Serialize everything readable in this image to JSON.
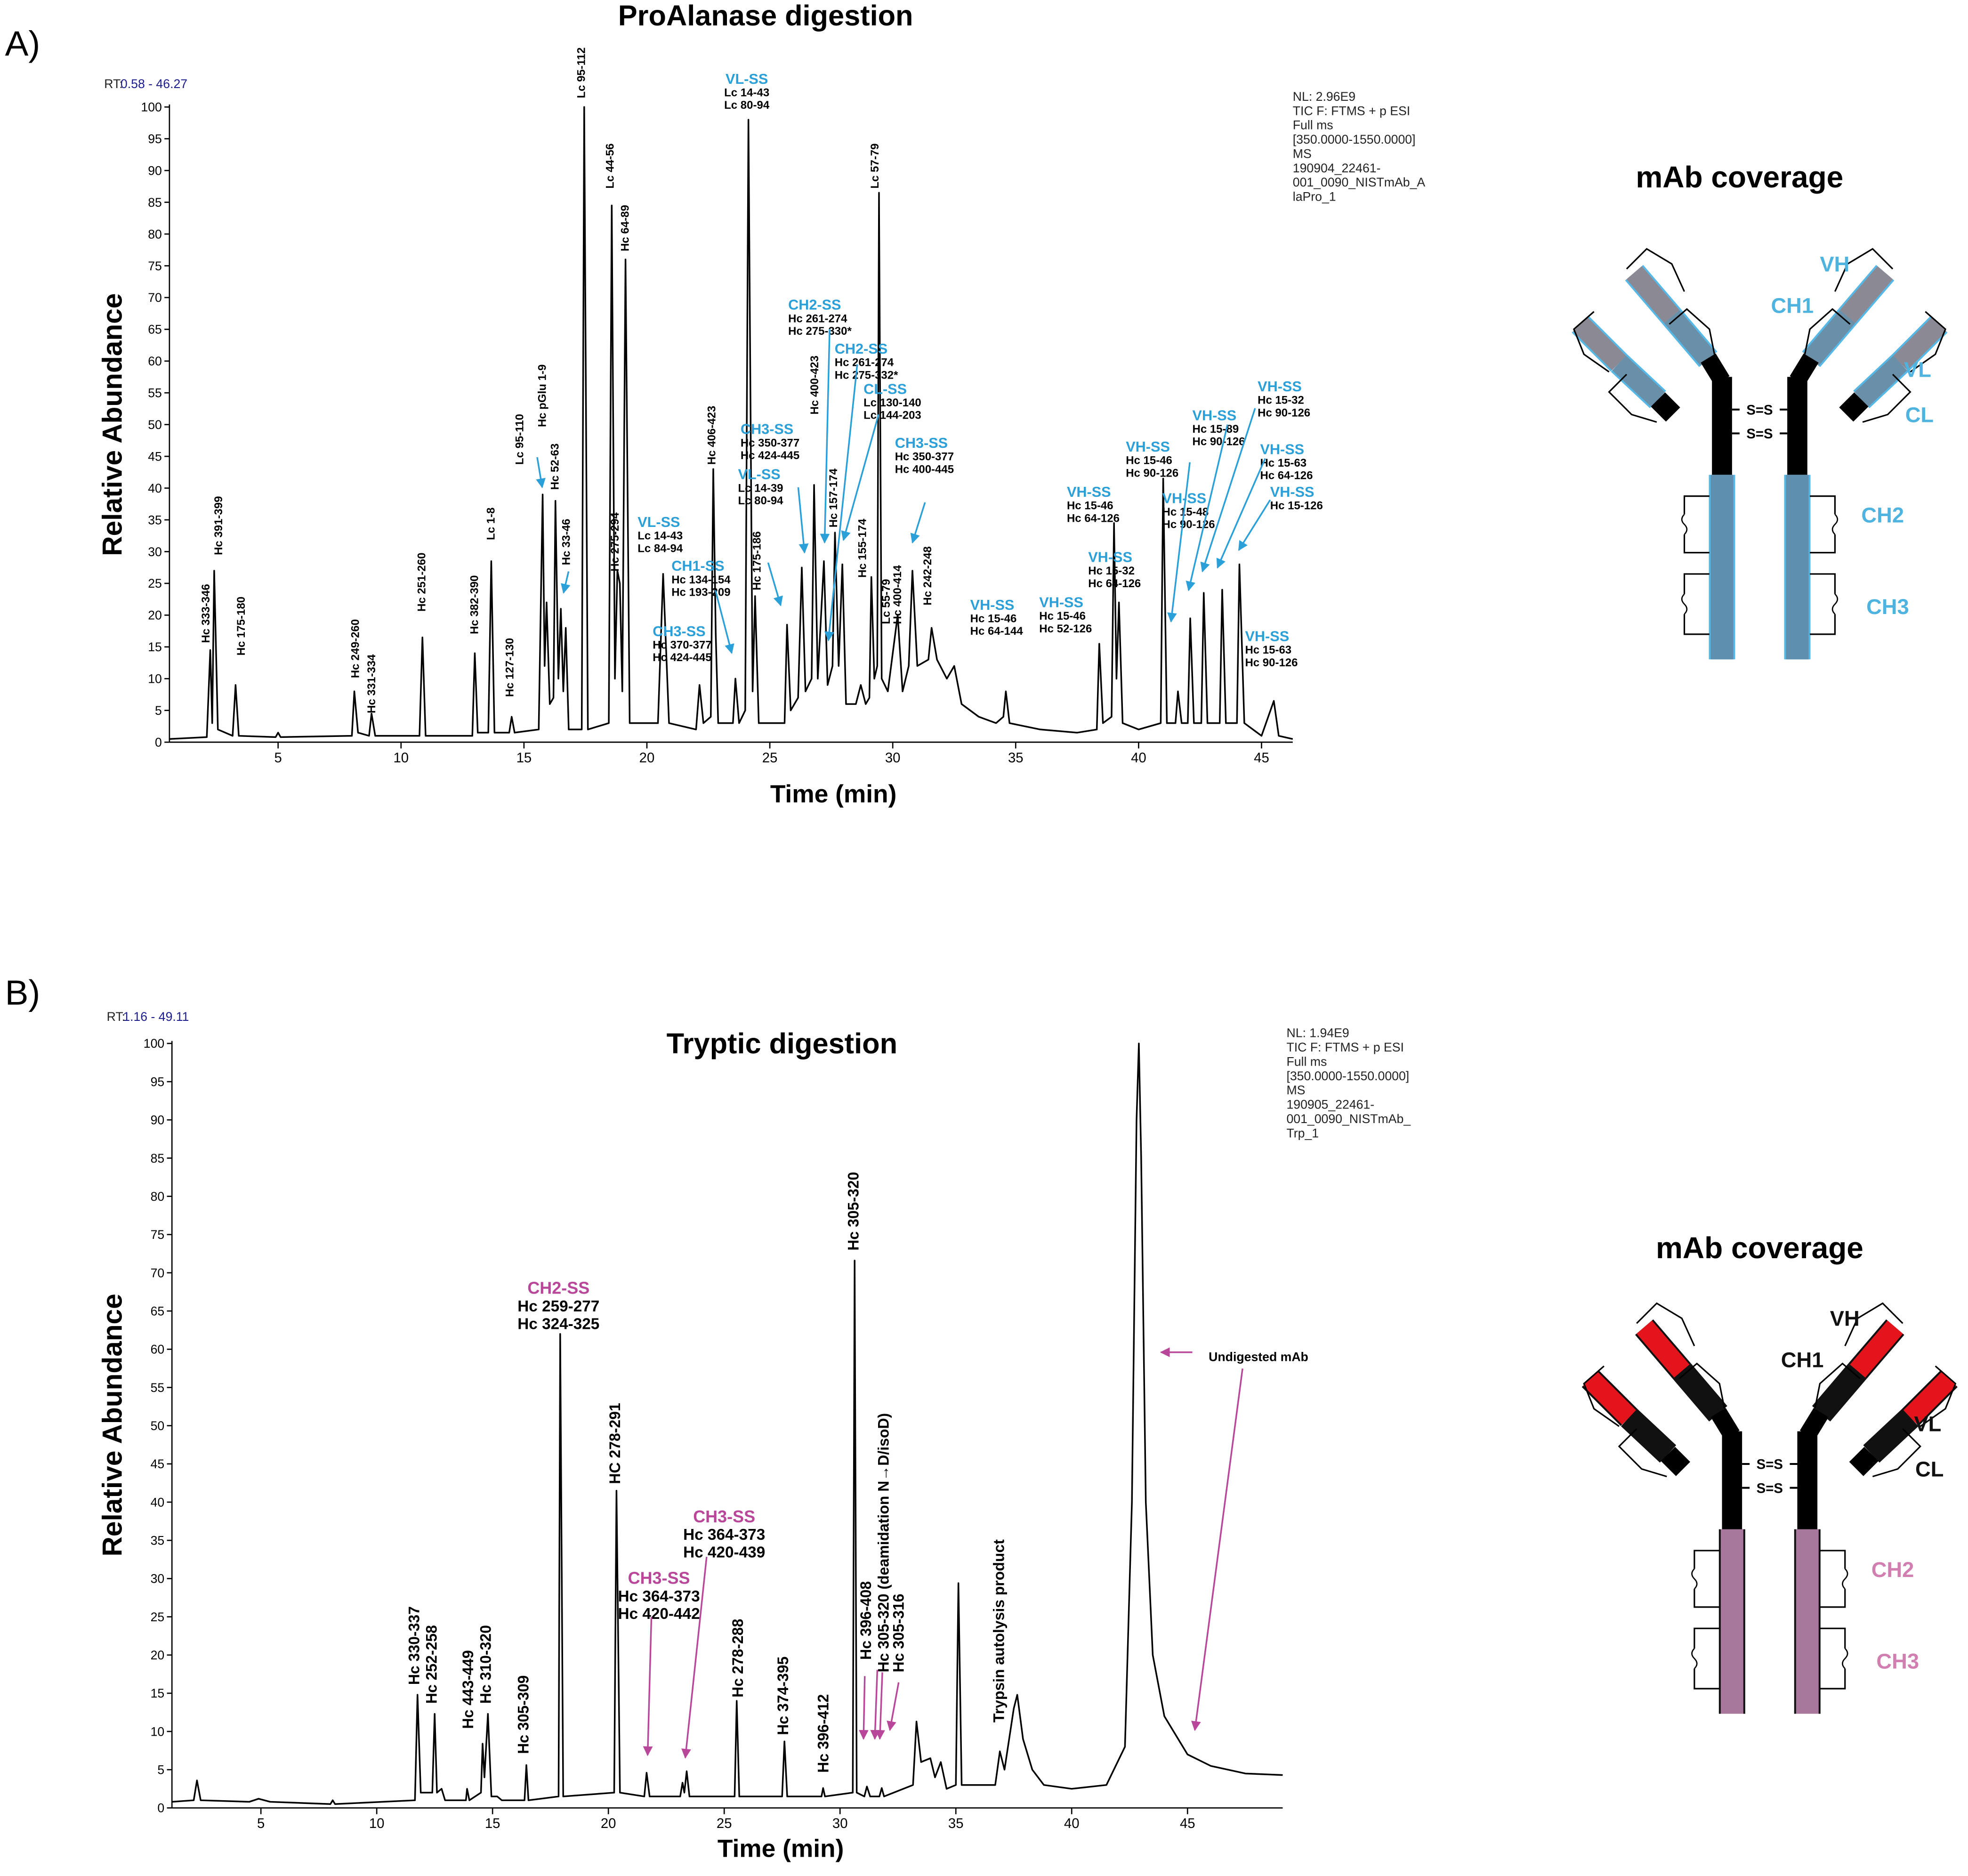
{
  "chart_data": [
    {
      "type": "line",
      "panel_label": "A)",
      "title": "ProAlanase digestion",
      "x_label": "Time (min)",
      "y_label": "Relative Abundance",
      "rt_prefix": "RT:",
      "rt_range": "0.58 - 46.27",
      "info_lines": [
        "NL: 2.96E9",
        "TIC F: FTMS + p ESI",
        "Full ms",
        "[350.0000-1550.0000]",
        "MS",
        "190904_22461-",
        "001_0090_NISTmAb_A",
        "laPro_1"
      ],
      "color": "#000000",
      "label_color": "#2a9fd8",
      "xlim": [
        0.58,
        46.27
      ],
      "ylim": [
        0,
        100
      ],
      "xticks": [
        5,
        10,
        15,
        20,
        25,
        30,
        35,
        40,
        45
      ],
      "yticks": [
        0,
        5,
        10,
        15,
        20,
        25,
        30,
        35,
        40,
        45,
        50,
        55,
        60,
        65,
        70,
        75,
        80,
        85,
        90,
        95,
        100
      ],
      "x": [
        0.58,
        2.1,
        2.24,
        2.32,
        2.4,
        2.55,
        3.15,
        3.27,
        3.4,
        4.9,
        5.0,
        5.1,
        8.0,
        8.1,
        8.25,
        8.7,
        8.8,
        8.95,
        10.75,
        10.87,
        11.0,
        12.9,
        13.0,
        13.12,
        13.55,
        13.67,
        13.8,
        14.4,
        14.5,
        14.62,
        15.6,
        15.76,
        15.84,
        15.92,
        16.05,
        16.2,
        16.28,
        16.4,
        16.5,
        16.6,
        16.7,
        16.82,
        17.35,
        17.45,
        17.6,
        18.45,
        18.57,
        18.7,
        18.8,
        18.9,
        19.0,
        19.13,
        19.3,
        20.45,
        20.66,
        20.9,
        22.0,
        22.14,
        22.3,
        22.6,
        22.7,
        22.8,
        22.9,
        23.5,
        23.6,
        23.75,
        24.0,
        24.13,
        24.3,
        24.4,
        24.55,
        25.6,
        25.7,
        25.85,
        26.15,
        26.3,
        26.45,
        26.7,
        26.8,
        26.95,
        27.2,
        27.35,
        27.55,
        27.65,
        27.8,
        27.95,
        28.1,
        28.5,
        28.7,
        28.9,
        29.05,
        29.13,
        29.25,
        29.37,
        29.44,
        29.55,
        29.8,
        30.2,
        30.4,
        30.65,
        30.8,
        31.0,
        31.45,
        31.58,
        31.8,
        32.2,
        32.5,
        32.8,
        33.5,
        34.2,
        34.5,
        34.6,
        34.75,
        36.0,
        37.5,
        38.3,
        38.4,
        38.55,
        38.9,
        39.0,
        39.1,
        39.2,
        39.35,
        40.0,
        40.9,
        41.0,
        41.15,
        41.5,
        41.6,
        41.75,
        42.0,
        42.1,
        42.25,
        42.55,
        42.65,
        42.8,
        43.3,
        43.4,
        43.55,
        44.0,
        44.1,
        44.3,
        45.0,
        45.5,
        45.7,
        46.27
      ],
      "values": [
        0.5,
        0.8,
        14.5,
        3,
        27,
        2,
        1,
        9,
        1,
        0.8,
        1.5,
        0.8,
        1,
        8,
        1.5,
        1,
        4.5,
        1,
        1,
        16.5,
        1,
        1,
        14,
        1.5,
        1.5,
        28.5,
        1.5,
        1.5,
        4,
        1.5,
        2,
        39,
        12,
        22,
        6,
        7,
        38,
        10,
        21,
        8,
        18,
        2,
        2,
        100,
        2,
        3,
        84.5,
        10,
        27,
        25,
        8,
        76,
        3,
        3,
        26.5,
        3,
        2,
        9,
        3,
        4,
        43,
        17,
        3,
        3,
        10,
        3,
        5,
        98,
        8,
        23,
        3,
        3,
        18.5,
        5,
        7,
        27.5,
        8,
        10,
        40.5,
        10,
        28.5,
        9,
        12,
        33,
        12,
        28,
        6,
        6,
        9,
        6,
        7,
        26,
        10,
        12,
        86.5,
        10,
        8,
        20,
        8,
        12,
        27,
        12,
        13,
        18,
        13,
        10,
        12,
        6,
        4,
        3,
        4,
        8,
        3,
        2,
        1.5,
        2,
        15.5,
        3,
        4,
        34.5,
        10,
        22,
        3,
        2,
        3,
        41.5,
        3,
        3,
        8,
        3,
        3,
        19.5,
        3,
        3,
        23.5,
        3,
        3,
        24,
        3,
        3,
        28,
        3,
        1,
        6.5,
        1,
        0.5
      ],
      "peak_labels": [
        "Hc 333-346",
        "Hc 391-399",
        "Hc 175-180",
        "Hc 249-260",
        "Hc 331-334",
        "Hc 251-260",
        "Hc 382-390",
        "Lc 1-8",
        "Hc 127-130",
        "Lc 95-110",
        "Hc pGlu 1-9",
        "Hc 52-63",
        "Hc 33-46",
        "Lc 95-112",
        "Lc 44-56",
        "Hc 64-89",
        "Hc 275-294",
        "Hc 406-423",
        "Hc 175-186",
        "Hc 400-423",
        "Hc 157-174",
        "Lc 57-79",
        "Hc 155-174",
        "Lc 55-79",
        "Hc 400-414",
        "Hc 242-248"
      ],
      "annotations": [
        {
          "title": "VL-SS",
          "lines": [
            "Lc 14-43",
            "Lc 80-94"
          ]
        },
        {
          "title": "CH2-SS",
          "lines": [
            "Hc 261-274",
            "Hc 275-330*"
          ]
        },
        {
          "title": "CH2-SS",
          "lines": [
            "Hc 261-274",
            "Hc 275-332*"
          ]
        },
        {
          "title": "CL-SS",
          "lines": [
            "Lc 130-140",
            "Lc 144-203"
          ]
        },
        {
          "title": "CH3-SS",
          "lines": [
            "Hc 350-377",
            "Hc 424-445"
          ]
        },
        {
          "title": "CH3-SS",
          "lines": [
            "Hc 350-377",
            "Hc 400-445"
          ]
        },
        {
          "title": "VL-SS",
          "lines": [
            "Lc 14-39",
            "Lc 80-94"
          ]
        },
        {
          "title": "VL-SS",
          "lines": [
            "Lc 14-43",
            "Lc 84-94"
          ]
        },
        {
          "title": "CH1-SS",
          "lines": [
            "Hc 134-154",
            "Hc 193-209"
          ]
        },
        {
          "title": "CH3-SS",
          "lines": [
            "Hc 370-377",
            "Hc 424-445"
          ]
        },
        {
          "title": "VH-SS",
          "lines": [
            "Hc 15-46",
            "Hc 64-144"
          ]
        },
        {
          "title": "VH-SS",
          "lines": [
            "Hc 15-46",
            "Hc 52-126"
          ]
        },
        {
          "title": "VH-SS",
          "lines": [
            "Hc 15-46",
            "Hc 64-126"
          ]
        },
        {
          "title": "VH-SS",
          "lines": [
            "Hc 15-32",
            "Hc 64-126"
          ]
        },
        {
          "title": "VH-SS",
          "lines": [
            "Hc 15-46",
            "Hc 90-126"
          ]
        },
        {
          "title": "VH-SS",
          "lines": [
            "Hc 15-48",
            "Hc 90-126"
          ]
        },
        {
          "title": "VH-SS",
          "lines": [
            "Hc 15-89",
            "Hc 90-126"
          ]
        },
        {
          "title": "VH-SS",
          "lines": [
            "Hc 15-32",
            "Hc 90-126"
          ]
        },
        {
          "title": "VH-SS",
          "lines": [
            "Hc 15-63",
            "Hc 64-126"
          ]
        },
        {
          "title": "VH-SS",
          "lines": [
            "Hc 15-126"
          ]
        },
        {
          "title": "VH-SS",
          "lines": [
            "Hc 15-63",
            "Hc 90-126"
          ]
        }
      ]
    },
    {
      "type": "line",
      "panel_label": "B)",
      "title": "Tryptic digestion",
      "x_label": "Time (min)",
      "y_label": "Relative Abundance",
      "rt_prefix": "RT:",
      "rt_range": "1.16 - 49.11",
      "info_lines": [
        "NL: 1.94E9",
        "TIC F: FTMS + p ESI",
        "Full ms",
        "[350.0000-1550.0000]",
        "MS",
        "190905_22461-",
        "001_0090_NISTmAb_",
        "Trp_1"
      ],
      "color": "#000000",
      "label_color": "#b8479a",
      "xlim": [
        1.16,
        49.11
      ],
      "ylim": [
        0,
        100
      ],
      "xticks": [
        5,
        10,
        15,
        20,
        25,
        30,
        35,
        40,
        45
      ],
      "yticks": [
        0,
        5,
        10,
        15,
        20,
        25,
        30,
        35,
        40,
        45,
        50,
        55,
        60,
        65,
        70,
        75,
        80,
        85,
        90,
        95,
        100
      ],
      "x": [
        1.16,
        2.1,
        2.24,
        2.4,
        4.5,
        4.9,
        5.4,
        8.0,
        8.1,
        8.2,
        11.65,
        11.76,
        11.9,
        12.4,
        12.5,
        12.6,
        12.8,
        12.95,
        13.85,
        13.9,
        14.0,
        14.5,
        14.57,
        14.65,
        14.8,
        14.95,
        15.2,
        15.4,
        16.38,
        16.46,
        16.55,
        17.85,
        17.92,
        18.05,
        20.25,
        20.35,
        20.5,
        21.55,
        21.65,
        21.78,
        23.1,
        23.2,
        23.28,
        23.38,
        23.5,
        25.45,
        25.54,
        25.65,
        27.5,
        27.6,
        27.72,
        29.2,
        29.27,
        29.35,
        30.55,
        30.63,
        30.72,
        31.05,
        31.16,
        31.3,
        31.7,
        31.8,
        31.9,
        33.15,
        33.3,
        33.5,
        33.9,
        34.1,
        34.35,
        34.6,
        35.0,
        35.11,
        35.25,
        36.7,
        36.9,
        37.1,
        37.5,
        37.65,
        37.9,
        38.3,
        38.8,
        40.0,
        41.5,
        42.3,
        42.6,
        42.8,
        42.9,
        43.0,
        43.2,
        43.5,
        44.0,
        45.0,
        46.0,
        47.5,
        49.11
      ],
      "values": [
        0.8,
        1,
        3.6,
        1,
        0.8,
        1.2,
        0.8,
        0.5,
        1,
        0.5,
        1,
        14.8,
        2,
        2,
        12.3,
        2,
        2.5,
        1,
        1,
        2.5,
        1,
        2,
        8.4,
        4,
        12.3,
        1.5,
        1.5,
        1,
        1,
        5.6,
        1,
        1.5,
        62,
        1.5,
        2,
        41.5,
        2,
        1.5,
        4.6,
        1.5,
        1.5,
        3.3,
        2,
        4.8,
        1.5,
        1.5,
        14,
        1.5,
        1.5,
        8.7,
        1.5,
        1.5,
        2.6,
        1.5,
        2,
        71.6,
        2,
        1.5,
        2.8,
        1.5,
        1.5,
        2.6,
        1.5,
        3,
        11.3,
        6,
        6.5,
        4,
        6,
        2.5,
        3,
        29.4,
        3,
        3,
        7.4,
        5,
        13,
        14.8,
        9,
        5,
        3,
        2.5,
        3,
        8,
        40,
        90,
        100,
        85,
        40,
        20,
        12,
        7,
        5.5,
        4.5,
        4.3
      ],
      "peak_labels": [
        "Hc 330-337",
        "Hc 252-258",
        "Hc 443-449",
        "Hc 310-320",
        "Hc 305-309",
        "HC 278-291",
        "Hc 278-288",
        "Hc 374-395",
        "Hc 396-412",
        "Hc 305-320",
        "Hc 396-408",
        "Hc 305-320 (deamidation N→D/isoD)",
        "Hc 305-316",
        "Trypsin autolysis product"
      ],
      "annotations": [
        {
          "title": "CH2-SS",
          "lines": [
            "Hc 259-277",
            "Hc 324-325"
          ]
        },
        {
          "title": "CH3-SS",
          "lines": [
            "Hc 364-373",
            "Hc 420-439"
          ]
        },
        {
          "title": "CH3-SS",
          "lines": [
            "Hc 364-373",
            "Hc 420-442"
          ]
        },
        {
          "lines": [
            "Undigested mAb"
          ]
        }
      ]
    }
  ],
  "diagrams": [
    {
      "title": "mAb coverage",
      "bond_label": "S=S",
      "variable_color": "#8b8994",
      "constant_color": "#6a8fa8",
      "outline_color": "#55b8e6",
      "fc_color": "#5f8fae",
      "labels": [
        {
          "text": "VH",
          "color": "#4fb3e0"
        },
        {
          "text": "CH1",
          "color": "#4fb3e0"
        },
        {
          "text": "VL",
          "color": "#4fb3e0"
        },
        {
          "text": "CL",
          "color": "#4fb3e0"
        },
        {
          "text": "CH2",
          "color": "#4fb3e0"
        },
        {
          "text": "CH3",
          "color": "#4fb3e0"
        }
      ]
    },
    {
      "title": "mAb coverage",
      "bond_label": "S=S",
      "variable_color": "#e3141b",
      "constant_color": "#111111",
      "outline_color": "#111111",
      "fc_color": "#a8779c",
      "labels": [
        {
          "text": "VH",
          "color": "#111111"
        },
        {
          "text": "CH1",
          "color": "#111111"
        },
        {
          "text": "VL",
          "color": "#111111"
        },
        {
          "text": "CL",
          "color": "#111111"
        },
        {
          "text": "CH2",
          "color": "#d07fb0"
        },
        {
          "text": "CH3",
          "color": "#d07fb0"
        }
      ]
    }
  ]
}
